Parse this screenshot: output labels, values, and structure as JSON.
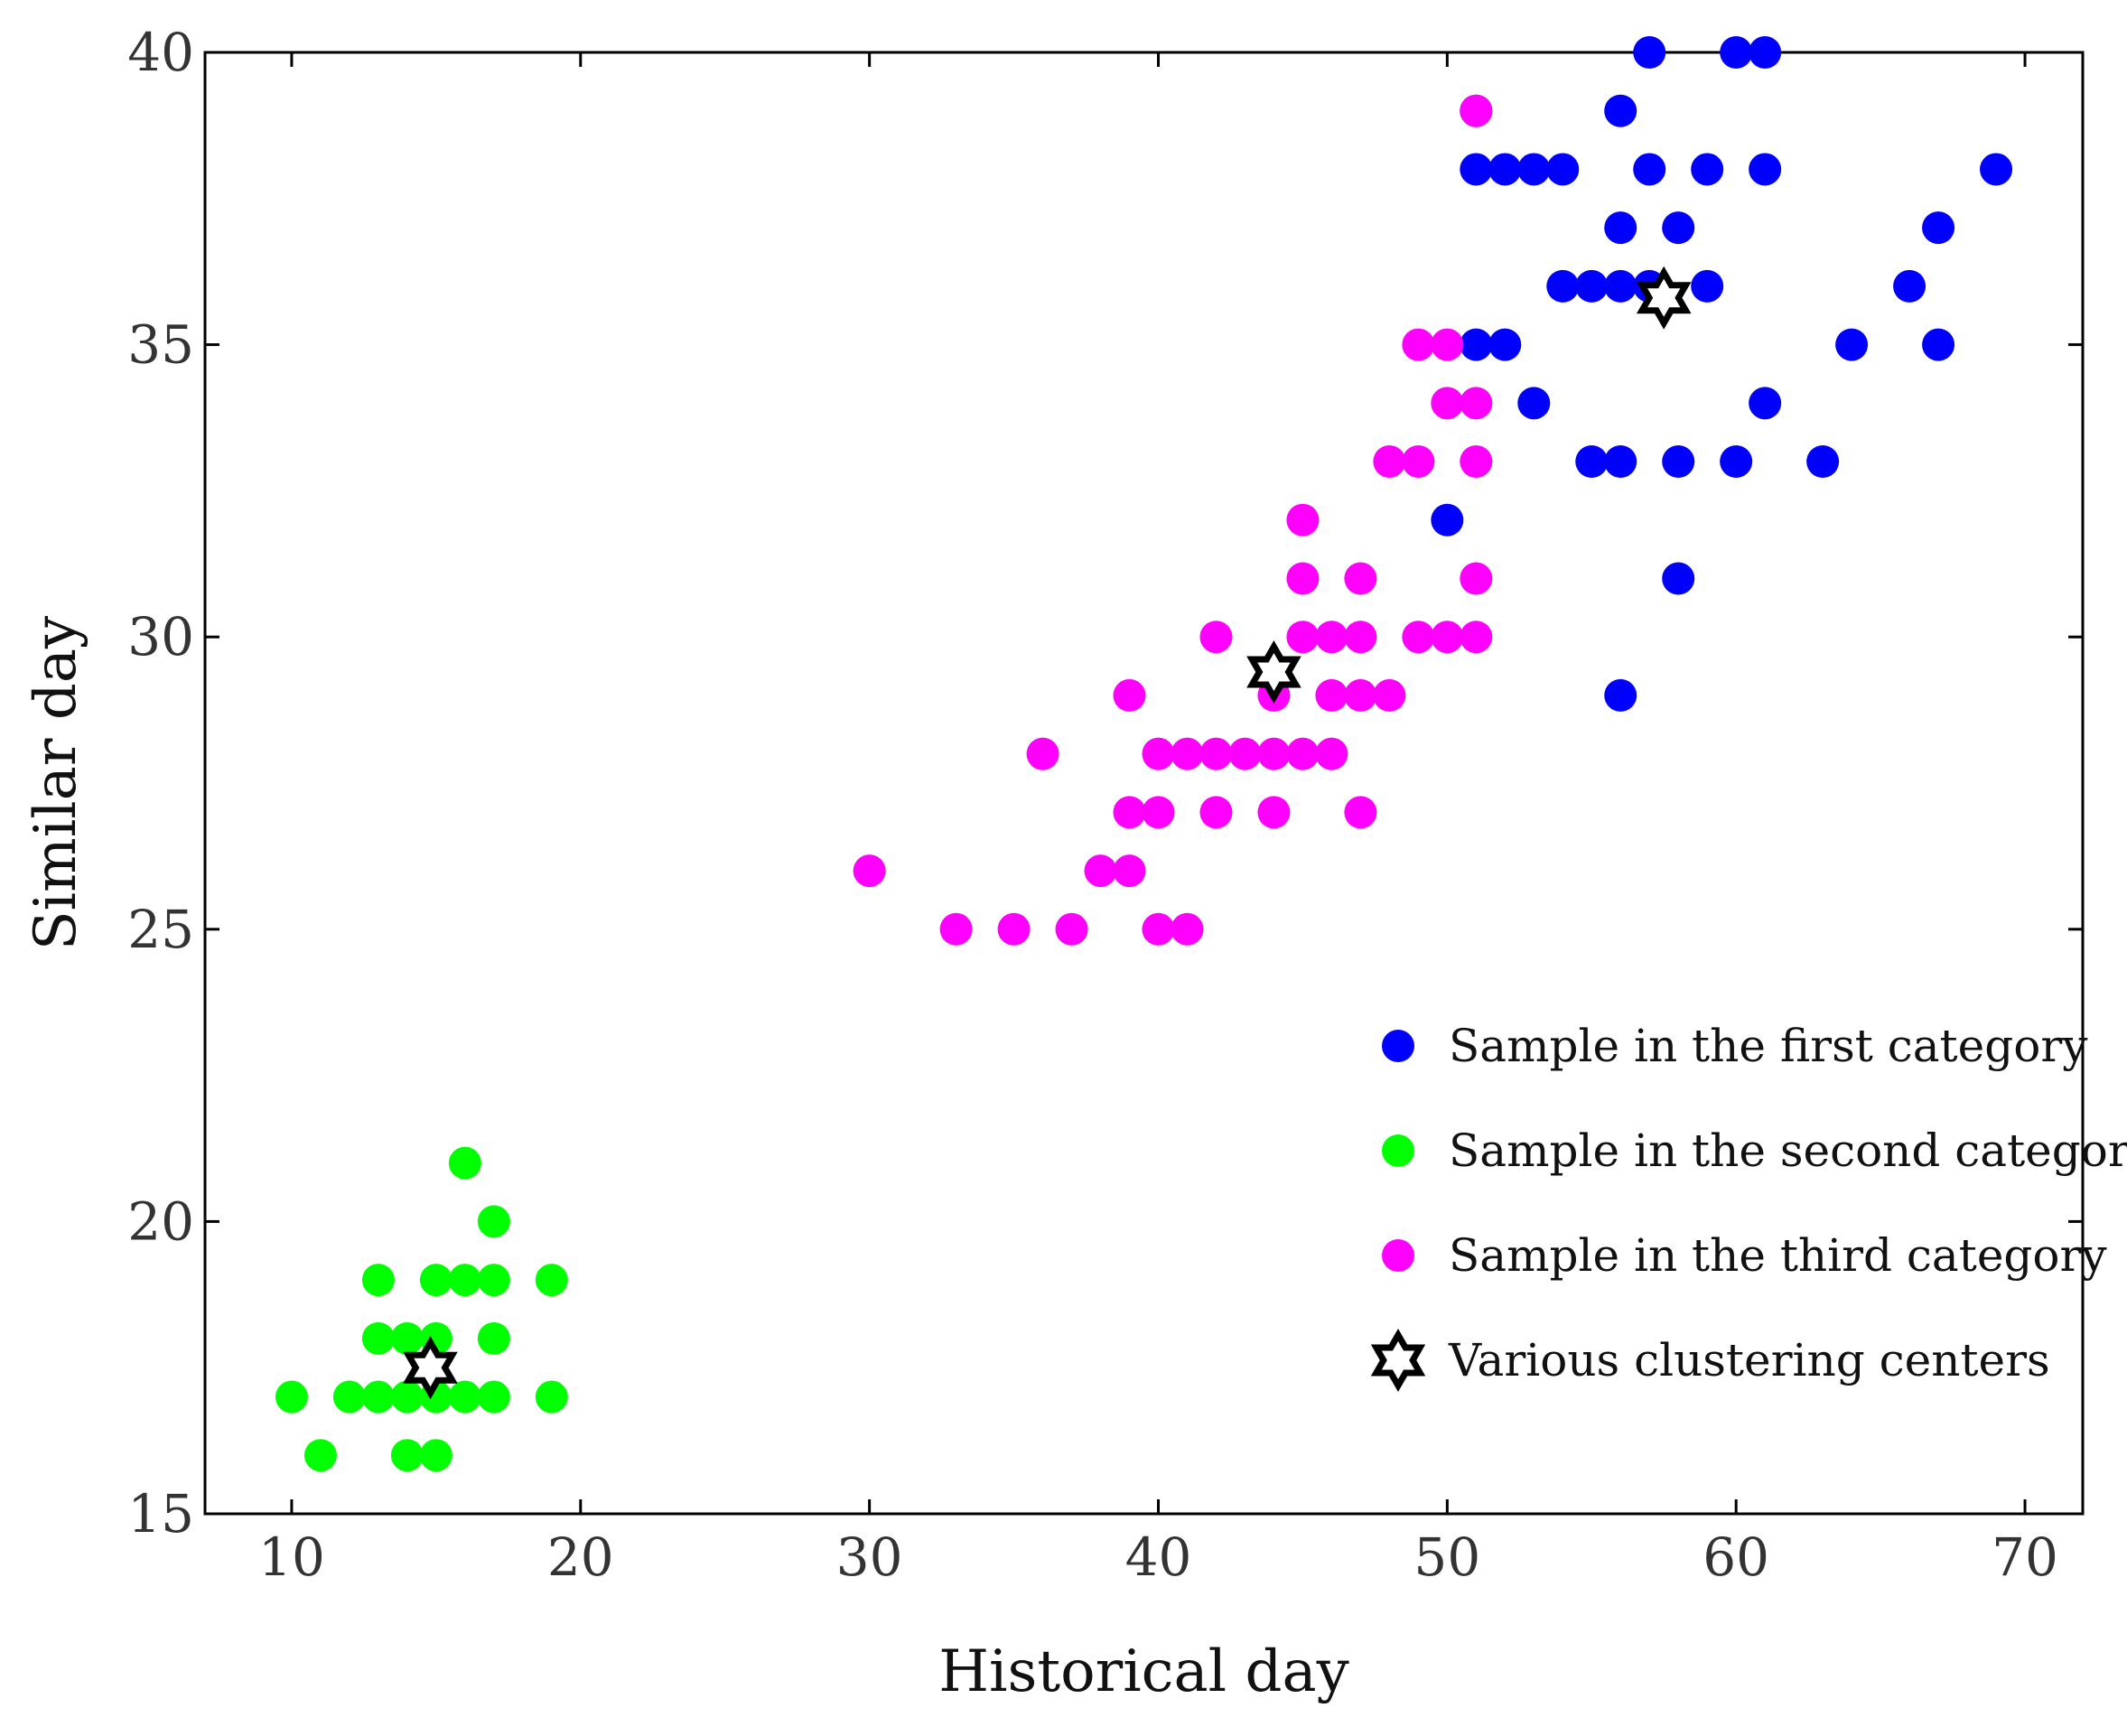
{
  "chart_data": {
    "type": "scatter",
    "title": "",
    "xlabel": "Historical day",
    "ylabel": "Similar day",
    "xlim": [
      7,
      72
    ],
    "ylim": [
      15,
      40
    ],
    "xticks": [
      10,
      20,
      30,
      40,
      50,
      60,
      70
    ],
    "yticks": [
      15,
      20,
      25,
      30,
      35,
      40
    ],
    "grid": false,
    "legend_position": "right-middle",
    "series": [
      {
        "name": "Sample in the first category",
        "color": "#0000ff",
        "marker": "circle",
        "points": [
          [
            57,
            40
          ],
          [
            60,
            40
          ],
          [
            61,
            40
          ],
          [
            51,
            39
          ],
          [
            56,
            39
          ],
          [
            51,
            38
          ],
          [
            52,
            38
          ],
          [
            53,
            38
          ],
          [
            54,
            38
          ],
          [
            57,
            38
          ],
          [
            59,
            38
          ],
          [
            61,
            38
          ],
          [
            69,
            38
          ],
          [
            56,
            37
          ],
          [
            58,
            37
          ],
          [
            67,
            37
          ],
          [
            54,
            36
          ],
          [
            55,
            36
          ],
          [
            56,
            36
          ],
          [
            57,
            36
          ],
          [
            59,
            36
          ],
          [
            66,
            36
          ],
          [
            51,
            35
          ],
          [
            52,
            35
          ],
          [
            64,
            35
          ],
          [
            67,
            35
          ],
          [
            53,
            34
          ],
          [
            61,
            34
          ],
          [
            55,
            33
          ],
          [
            56,
            33
          ],
          [
            58,
            33
          ],
          [
            60,
            33
          ],
          [
            63,
            33
          ],
          [
            50,
            32
          ],
          [
            58,
            31
          ],
          [
            56,
            29
          ]
        ]
      },
      {
        "name": "Sample in the second category",
        "color": "#00ff00",
        "marker": "circle",
        "points": [
          [
            16,
            21
          ],
          [
            17,
            20
          ],
          [
            13,
            19
          ],
          [
            15,
            19
          ],
          [
            16,
            19
          ],
          [
            17,
            19
          ],
          [
            19,
            19
          ],
          [
            13,
            18
          ],
          [
            14,
            18
          ],
          [
            15,
            18
          ],
          [
            17,
            18
          ],
          [
            10,
            17
          ],
          [
            12,
            17
          ],
          [
            13,
            17
          ],
          [
            14,
            17
          ],
          [
            15,
            17
          ],
          [
            16,
            17
          ],
          [
            17,
            17
          ],
          [
            19,
            17
          ],
          [
            11,
            16
          ],
          [
            14,
            16
          ],
          [
            15,
            16
          ]
        ]
      },
      {
        "name": "Sample in the third category",
        "color": "#ff00ff",
        "marker": "circle",
        "points": [
          [
            51,
            39
          ],
          [
            49,
            35
          ],
          [
            50,
            35
          ],
          [
            50,
            34
          ],
          [
            51,
            34
          ],
          [
            48,
            33
          ],
          [
            49,
            33
          ],
          [
            51,
            33
          ],
          [
            45,
            32
          ],
          [
            45,
            31
          ],
          [
            47,
            31
          ],
          [
            51,
            31
          ],
          [
            42,
            30
          ],
          [
            45,
            30
          ],
          [
            46,
            30
          ],
          [
            47,
            30
          ],
          [
            49,
            30
          ],
          [
            50,
            30
          ],
          [
            51,
            30
          ],
          [
            39,
            29
          ],
          [
            44,
            29
          ],
          [
            46,
            29
          ],
          [
            47,
            29
          ],
          [
            48,
            29
          ],
          [
            36,
            28
          ],
          [
            40,
            28
          ],
          [
            41,
            28
          ],
          [
            42,
            28
          ],
          [
            43,
            28
          ],
          [
            44,
            28
          ],
          [
            45,
            28
          ],
          [
            46,
            28
          ],
          [
            39,
            27
          ],
          [
            40,
            27
          ],
          [
            42,
            27
          ],
          [
            44,
            27
          ],
          [
            47,
            27
          ],
          [
            30,
            26
          ],
          [
            38,
            26
          ],
          [
            39,
            26
          ],
          [
            33,
            25
          ],
          [
            35,
            25
          ],
          [
            37,
            25
          ],
          [
            40,
            25
          ],
          [
            41,
            25
          ]
        ]
      },
      {
        "name": "Various clustering centers",
        "color": "#000000",
        "marker": "hexagram",
        "points": [
          [
            14.8,
            17.5
          ],
          [
            44,
            29.4
          ],
          [
            57.5,
            35.8
          ]
        ]
      }
    ]
  }
}
